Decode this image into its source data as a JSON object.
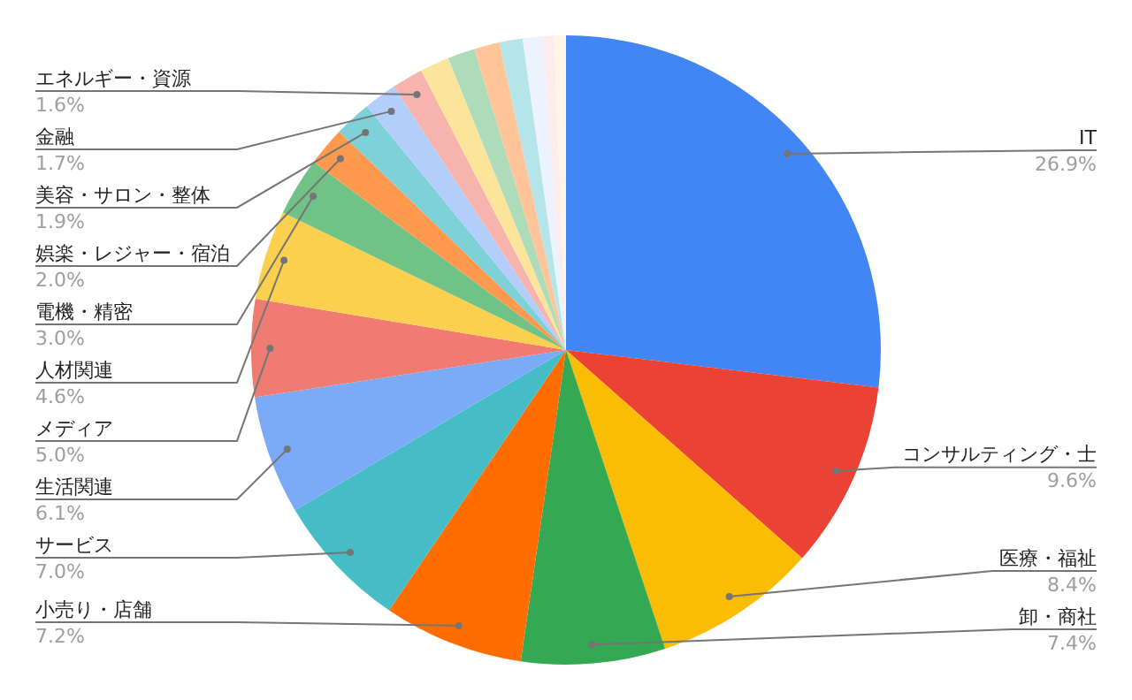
{
  "chart_data": {
    "type": "pie",
    "categories": [
      "IT",
      "コンサルティング・士",
      "医療・福祉",
      "卸・商社",
      "小売り・店舗",
      "サービス",
      "生活関連",
      "メディア",
      "人材関連",
      "電機・精密",
      "娯楽・レジャー・宿泊",
      "美容・サロン・整体",
      "金融",
      "エネルギー・資源",
      null,
      null,
      null,
      null,
      null,
      null,
      null
    ],
    "values": [
      26.9,
      9.6,
      8.4,
      7.4,
      7.2,
      7.0,
      6.1,
      5.0,
      4.6,
      3.0,
      2.0,
      1.9,
      1.7,
      1.6,
      1.5,
      1.4,
      1.3,
      1.2,
      1.0,
      0.6,
      0.6
    ],
    "colors": [
      "#4285f4",
      "#ea4335",
      "#fbbc04",
      "#34a853",
      "#ff6d01",
      "#46bdc6",
      "#7baaf7",
      "#f07b72",
      "#fcd04f",
      "#71c287",
      "#ff994d",
      "#7ed1d7",
      "#b3cefb",
      "#f7b4ae",
      "#fde49b",
      "#aedcba",
      "#ffc599",
      "#b5e5e8",
      "#ecf3fe",
      "#fdeceb",
      "#fff4e5"
    ],
    "value_labels": [
      "26.9%",
      "9.6%",
      "8.4%",
      "7.4%",
      "7.2%",
      "7.0%",
      "6.1%",
      "5.0%",
      "4.6%",
      "3.0%",
      "2.0%",
      "1.9%",
      "1.7%",
      "1.6%",
      null,
      null,
      null,
      null,
      null,
      null,
      null
    ],
    "legend": false
  }
}
